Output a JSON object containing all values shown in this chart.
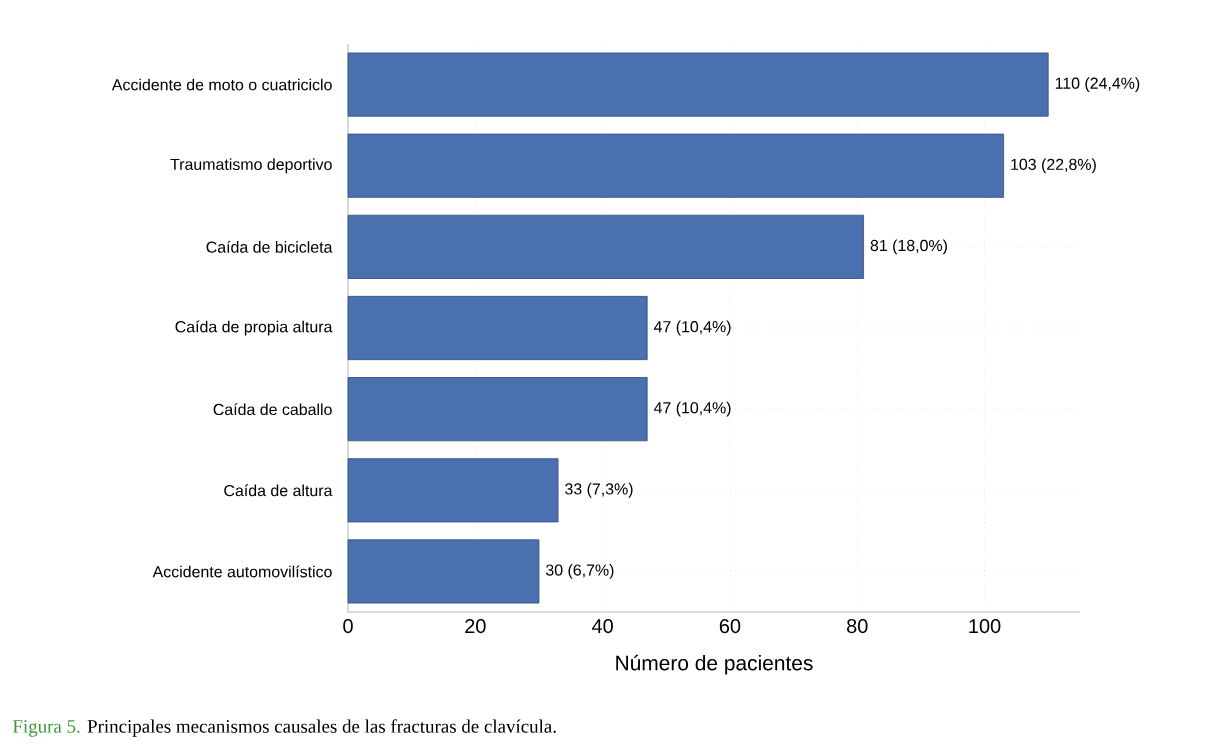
{
  "chart_data": {
    "type": "bar",
    "orientation": "horizontal",
    "xlabel": "Número de pacientes",
    "categories": [
      "Accidente de moto o cuatriciclo",
      "Traumatismo deportivo",
      "Caída de bicicleta",
      "Caída de propia altura",
      "Caída de caballo",
      "Caída de altura",
      "Accidente automovilístico"
    ],
    "values": [
      110,
      103,
      81,
      47,
      47,
      33,
      30
    ],
    "value_labels": [
      "110 (24,4%)",
      "103 (22,8%)",
      "81 (18,0%)",
      "47 (10,4%)",
      "47 (10,4%)",
      "33 (7,3%)",
      "30 (6,7%)"
    ],
    "color": "#4a70b0",
    "xlim": [
      0,
      115
    ],
    "xticks": [
      0,
      20,
      40,
      60,
      80,
      100
    ],
    "grid": true,
    "annotations": [
      "Figura 5.",
      "Principales mecanismos causales de las fracturas de clavícula."
    ]
  }
}
